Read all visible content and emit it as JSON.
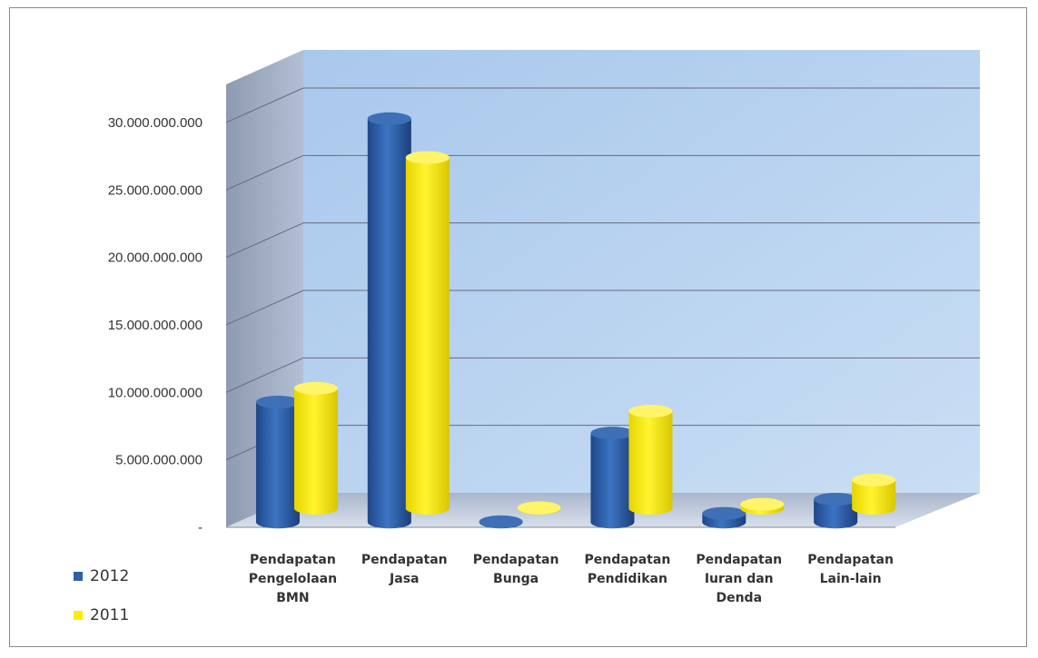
{
  "chart_data": {
    "type": "bar",
    "style": "3d-cylinder",
    "categories": [
      [
        "Pendapatan",
        "Pengelolaan",
        "BMN"
      ],
      [
        "Pendapatan",
        "Jasa"
      ],
      [
        "Pendapatan",
        "Bunga"
      ],
      [
        "Pendapatan",
        "Pendidikan"
      ],
      [
        "Pendapatan",
        "Iuran dan",
        "Denda"
      ],
      [
        "Pendapatan",
        "Lain-lain"
      ]
    ],
    "series": [
      {
        "name": "2012",
        "color": "#2f5fa8",
        "values": [
          8900000000,
          29900000000,
          30000000,
          6600000000,
          650000000,
          1700000000
        ]
      },
      {
        "name": "2011",
        "color": "#ffee00",
        "values": [
          8900000000,
          26000000000,
          40000000,
          7200000000,
          300000000,
          2100000000
        ]
      }
    ],
    "yticks": [
      "-",
      "5.000.000.000",
      "10.000.000.000",
      "15.000.000.000",
      "20.000.000.000",
      "25.000.000.000",
      "30.000.000.000"
    ],
    "ylim": [
      0,
      30000000000
    ],
    "grid": true,
    "legend_position": "bottom-left",
    "wall_color": "#b7d3f0"
  }
}
